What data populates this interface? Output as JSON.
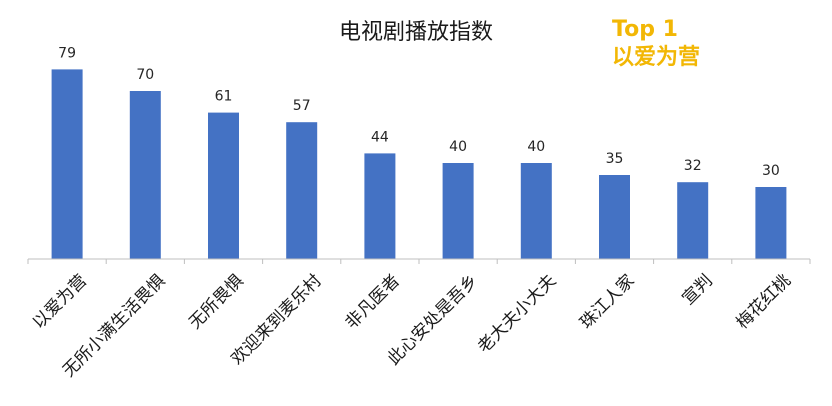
{
  "chart_data": {
    "type": "bar",
    "title": "电视剧播放指数",
    "categories": [
      "以爱为营",
      "无所小满生活畏惧",
      "无所畏惧",
      "欢迎来到麦乐村",
      "非凡医者",
      "此心安处是吾乡",
      "老大夫小大夫",
      "珠江人家",
      "宣判",
      "梅花红桃"
    ],
    "values": [
      79,
      70,
      61,
      57,
      44,
      40,
      40,
      35,
      32,
      30
    ],
    "xlabel": "",
    "ylabel": "",
    "ylim": [
      0,
      100
    ],
    "grid": false,
    "legend": "none",
    "bar_color": "#4472c4"
  },
  "annotation": {
    "line1": "Top 1",
    "line2": "以爱为营",
    "color": "#f2b705"
  }
}
